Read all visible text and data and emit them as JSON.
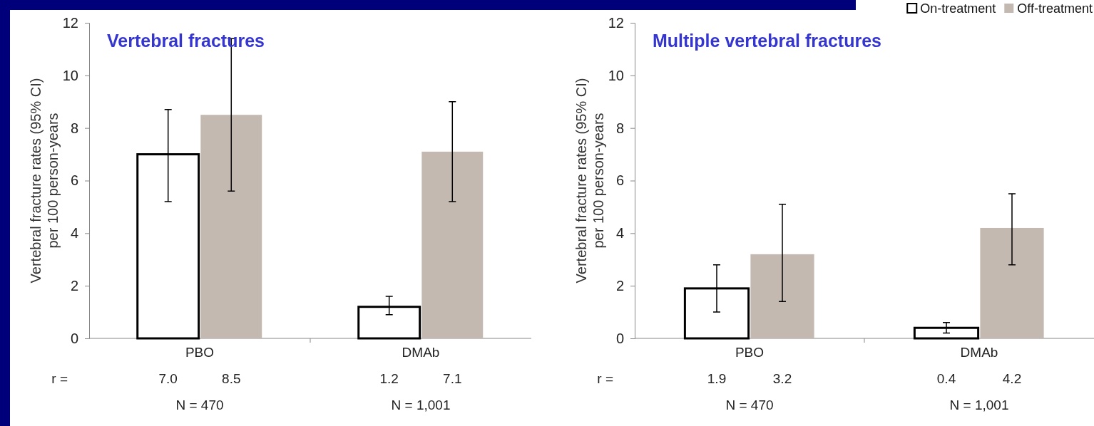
{
  "chart_data": [
    {
      "type": "bar",
      "title": "Vertebral fractures",
      "ylabel": "Vertebral fracture rates (95% CI)\nper 100 person-years",
      "categories": [
        "PBO",
        "DMAb"
      ],
      "ylim": [
        0,
        12
      ],
      "yticks": [
        0,
        2,
        4,
        6,
        8,
        10,
        12
      ],
      "grid": false,
      "legend": false,
      "series": [
        {
          "color": "#ffffff",
          "values": [
            7.0,
            1.2
          ],
          "errors": [
            [
              5.2,
              8.7
            ],
            [
              0.9,
              1.6
            ]
          ],
          "value_labels": [
            "7.0",
            "1.2"
          ]
        },
        {
          "color": "#c4b9b0",
          "values": [
            8.5,
            7.1
          ],
          "errors": [
            [
              5.6,
              11.4
            ],
            [
              5.2,
              9.0
            ]
          ],
          "value_labels": [
            "8.5",
            "7.1"
          ]
        }
      ],
      "annotations": [
        "r =",
        "N = 470",
        "N = 1,001"
      ]
    },
    {
      "type": "bar",
      "title": "Multiple vertebral fractures",
      "ylabel": "Vertebral fracture rates (95% CI)\nper 100 person-years",
      "categories": [
        "PBO",
        "DMAb"
      ],
      "ylim": [
        0,
        12
      ],
      "yticks": [
        0,
        2,
        4,
        6,
        8,
        10,
        12
      ],
      "grid": false,
      "legend": "top right",
      "series": [
        {
          "name": "On-treatment",
          "color": "#ffffff",
          "values": [
            1.9,
            0.4
          ],
          "errors": [
            [
              1.0,
              2.8
            ],
            [
              0.2,
              0.6
            ]
          ],
          "value_labels": [
            "1.9",
            "0.4"
          ]
        },
        {
          "name": "Off-treatment",
          "color": "#c4b9b0",
          "values": [
            3.2,
            4.2
          ],
          "errors": [
            [
              1.4,
              5.1
            ],
            [
              2.8,
              5.5
            ]
          ],
          "value_labels": [
            "3.2",
            "4.2"
          ]
        }
      ],
      "annotations": [
        "r =",
        "N = 470",
        "N = 1,001"
      ]
    }
  ]
}
